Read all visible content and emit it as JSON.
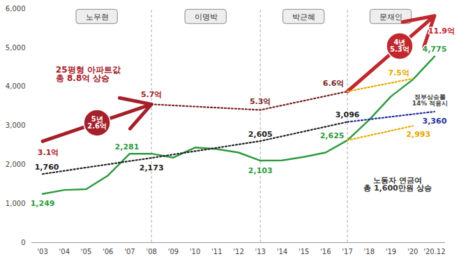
{
  "chart_data": {
    "type": "line",
    "categories": [
      "'03",
      "'04",
      "'05",
      "'06",
      "'07",
      "'08",
      "'09",
      "'10",
      "'11",
      "'12",
      "'13",
      "'14",
      "'15",
      "'16",
      "'17",
      "'18",
      "'19",
      "'20",
      "'20.12"
    ],
    "ylim": [
      0,
      6000
    ],
    "yticks": [
      0,
      {
        "value": 1000,
        "label": "1,000"
      },
      {
        "value": 2000,
        "label": "2,000"
      },
      {
        "value": 3000,
        "label": "3,000"
      },
      {
        "value": 4000,
        "label": "4,000"
      },
      {
        "value": 5000,
        "label": "5,000"
      },
      {
        "value": 6000,
        "label": "6,000"
      }
    ],
    "y2lim": [
      -4,
      12.4
    ],
    "y2ticks": [],
    "grid": false,
    "data_labels": true,
    "periods": [
      {
        "label": "노무현",
        "start": "'03",
        "end": "'08"
      },
      {
        "label": "이명박",
        "start": "'08",
        "end": "'13"
      },
      {
        "label": "박근혜",
        "start": "'13",
        "end": "'17"
      },
      {
        "label": "문재인",
        "start": "'17",
        "end": "'20.12"
      }
    ],
    "series": [
      {
        "type": "line",
        "color": "#2e9a3e",
        "line_style": "solid",
        "values": [
          1249,
          1350,
          1370,
          1720,
          2281,
          2281,
          2180,
          2440,
          2400,
          2310,
          2103,
          2110,
          2200,
          2310,
          2625,
          3150,
          3750,
          4180,
          4775
        ],
        "value_labels": [
          "1,249",
          null,
          null,
          null,
          "2,281",
          null,
          null,
          null,
          null,
          null,
          "2,103",
          null,
          null,
          null,
          "2,625",
          null,
          null,
          null,
          "4,775"
        ]
      },
      {
        "type": "line",
        "color": "#222222",
        "line_style": "dotted",
        "values": [
          1760,
          null,
          null,
          null,
          null,
          2173,
          null,
          null,
          null,
          null,
          2605,
          null,
          null,
          null,
          3096,
          null,
          null,
          null,
          null
        ],
        "value_labels": [
          "1,760",
          null,
          null,
          null,
          null,
          "2,173",
          null,
          null,
          null,
          null,
          "2,605",
          null,
          null,
          null,
          "3,096",
          null,
          null,
          null,
          null
        ]
      },
      {
        "type": "line",
        "color": "#1f2d9c",
        "line_style": "dotted",
        "values": [
          null,
          null,
          null,
          null,
          null,
          null,
          null,
          null,
          null,
          null,
          null,
          null,
          null,
          null,
          3096,
          null,
          null,
          null,
          3360
        ],
        "value_labels": [
          null,
          null,
          null,
          null,
          null,
          null,
          null,
          null,
          null,
          null,
          null,
          null,
          null,
          null,
          null,
          null,
          null,
          null,
          "3,360"
        ]
      },
      {
        "type": "arrow",
        "color": "#a5202a",
        "line_style": "solid",
        "axis": "y2",
        "values": [
          3.1,
          null,
          null,
          null,
          null,
          5.7,
          null,
          null,
          null,
          null,
          null,
          null,
          null,
          null,
          null,
          null,
          null,
          null,
          null
        ],
        "value_labels": [
          "3.1억",
          null,
          null,
          null,
          null,
          "5.7억",
          null,
          null,
          null,
          null,
          null,
          null,
          null,
          null,
          null,
          null,
          null,
          null,
          null
        ],
        "badge": [
          "5년",
          "2.6억"
        ]
      },
      {
        "type": "line",
        "color": "#7a1f1f",
        "line_style": "dotted",
        "axis": "y2",
        "values": [
          null,
          null,
          null,
          null,
          null,
          5.7,
          null,
          null,
          null,
          null,
          5.3,
          null,
          null,
          null,
          6.6,
          null,
          null,
          null,
          null
        ],
        "value_labels": [
          null,
          null,
          null,
          null,
          null,
          null,
          null,
          null,
          null,
          null,
          "5.3억",
          null,
          null,
          null,
          "6.6억",
          null,
          null,
          null,
          null
        ]
      },
      {
        "type": "arrow",
        "color": "#c0282d",
        "line_style": "solid",
        "axis": "y2",
        "values": [
          null,
          null,
          null,
          null,
          null,
          null,
          null,
          null,
          null,
          null,
          null,
          null,
          null,
          null,
          6.6,
          null,
          null,
          null,
          11.9
        ],
        "value_labels": [
          null,
          null,
          null,
          null,
          null,
          null,
          null,
          null,
          null,
          null,
          null,
          null,
          null,
          null,
          null,
          null,
          null,
          null,
          "11.9억"
        ],
        "badge": [
          "4년",
          "5.3억"
        ]
      },
      {
        "type": "line",
        "color": "#e6a800",
        "line_style": "dotted",
        "axis": "y2",
        "values": [
          null,
          null,
          null,
          null,
          null,
          null,
          null,
          null,
          null,
          null,
          null,
          null,
          null,
          null,
          6.6,
          null,
          null,
          7.5,
          null
        ],
        "value_labels": [
          null,
          null,
          null,
          null,
          null,
          null,
          null,
          null,
          null,
          null,
          null,
          null,
          null,
          null,
          null,
          null,
          null,
          "7.5억",
          null
        ]
      },
      {
        "type": "line",
        "color": "#e6a800",
        "line_style": "dotted",
        "values": [
          null,
          null,
          null,
          null,
          null,
          null,
          null,
          null,
          null,
          null,
          null,
          null,
          null,
          null,
          2625,
          null,
          null,
          2993,
          null
        ],
        "value_labels": [
          null,
          null,
          null,
          null,
          null,
          null,
          null,
          null,
          null,
          null,
          null,
          null,
          null,
          null,
          null,
          null,
          null,
          "2,993",
          null
        ]
      }
    ],
    "annotations": [
      {
        "lines": [
          "25평형 아파트값",
          "총 8.8억 상승"
        ],
        "color": "#a5202a"
      },
      {
        "lines": [
          "노동자 연금여",
          "총 1,600만원 상승"
        ],
        "color": "#333333"
      },
      {
        "lines": [
          "정부상승률",
          "14% 적용시"
        ],
        "color": "#444444"
      }
    ]
  }
}
